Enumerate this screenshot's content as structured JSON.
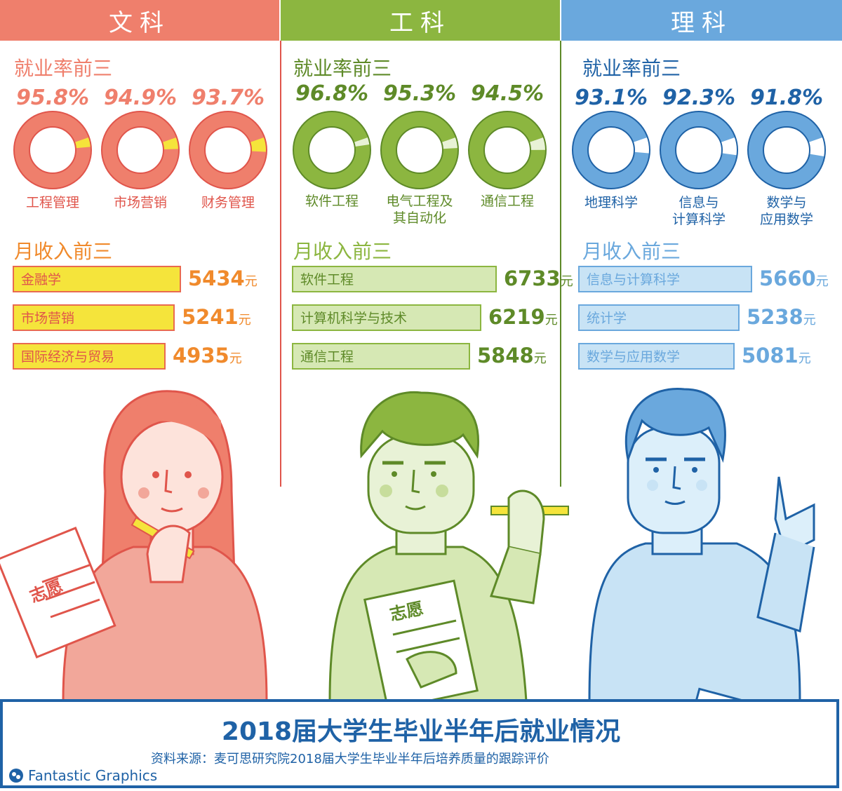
{
  "colors": {
    "wen": "#ef7f6c",
    "gong": "#8cb640",
    "li": "#6aa8dd",
    "wen_dark": "#e0554b",
    "gong_dark": "#5e8a28",
    "li_dark": "#1f62a6",
    "wen_bar": "#f5e43b",
    "gong_bar": "#d6e8b4",
    "li_bar": "#c8e3f5",
    "wen_bar_border": "#e96a4f",
    "gong_bar_border": "#8cb640",
    "li_bar_border": "#6aa8dd"
  },
  "headers": {
    "wen": "文科",
    "gong": "工科",
    "li": "理科"
  },
  "section_titles": {
    "employment": "就业率前三",
    "income": "月收入前三"
  },
  "chart_data": [
    {
      "type": "pie",
      "title": "就业率前三",
      "group": "文科",
      "categories": [
        "工程管理",
        "市场营销",
        "财务管理"
      ],
      "values": [
        95.8,
        94.9,
        93.7
      ],
      "value_labels": [
        "95.8%",
        "94.9%",
        "93.7%"
      ]
    },
    {
      "type": "pie",
      "title": "就业率前三",
      "group": "工科",
      "categories": [
        "软件工程",
        "电气工程及\n其自动化",
        "通信工程"
      ],
      "values": [
        96.8,
        95.3,
        94.5
      ],
      "value_labels": [
        "96.8%",
        "95.3%",
        "94.5%"
      ]
    },
    {
      "type": "pie",
      "title": "就业率前三",
      "group": "理科",
      "categories": [
        "地理科学",
        "信息与\n计算科学",
        "数学与\n应用数学"
      ],
      "values": [
        93.1,
        92.3,
        91.8
      ],
      "value_labels": [
        "93.1%",
        "92.3%",
        "91.8%"
      ]
    },
    {
      "type": "bar",
      "title": "月收入前三",
      "group": "文科",
      "categories": [
        "金融学",
        "市场营销",
        "国际经济与贸易"
      ],
      "values": [
        5434,
        5241,
        4935
      ],
      "value_labels": [
        "5434",
        "5241",
        "4935"
      ],
      "unit": "元"
    },
    {
      "type": "bar",
      "title": "月收入前三",
      "group": "工科",
      "categories": [
        "软件工程",
        "计算机科学与技术",
        "通信工程"
      ],
      "values": [
        6733,
        6219,
        5848
      ],
      "value_labels": [
        "6733",
        "6219",
        "5848"
      ],
      "unit": "元"
    },
    {
      "type": "bar",
      "title": "月收入前三",
      "group": "理科",
      "categories": [
        "信息与计算科学",
        "统计学",
        "数学与应用数学"
      ],
      "values": [
        5660,
        5238,
        5081
      ],
      "value_labels": [
        "5660",
        "5238",
        "5081"
      ],
      "unit": "元"
    }
  ],
  "illustration": {
    "form_text": "志愿"
  },
  "footer": {
    "title": "2018届大学生毕业半年后就业情况",
    "source": "资料来源：麦可思研究院2018届大学生毕业半年后培养质量的跟踪评价",
    "brand": "Fantastic Graphics"
  }
}
